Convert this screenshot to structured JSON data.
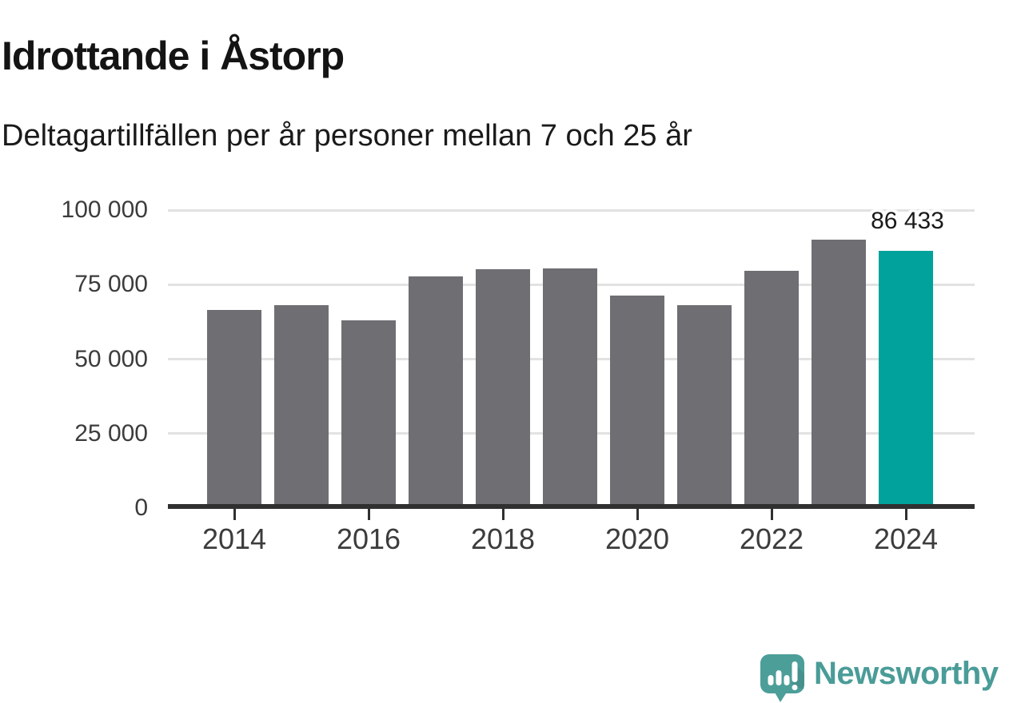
{
  "header": {
    "title": "Idrottande i Åstorp",
    "subtitle": "Deltagartillfällen per år personer mellan 7 och 25 år"
  },
  "chart_data": {
    "type": "bar",
    "title": "Idrottande i Åstorp",
    "subtitle": "Deltagartillfällen per år personer mellan 7 och 25 år",
    "xlabel": "",
    "ylabel": "",
    "categories": [
      "2014",
      "2015",
      "2016",
      "2017",
      "2018",
      "2019",
      "2020",
      "2021",
      "2022",
      "2023",
      "2024"
    ],
    "values": [
      66600,
      68000,
      62900,
      77800,
      80100,
      80500,
      71300,
      68000,
      79600,
      90200,
      86433
    ],
    "highlight_index": 10,
    "highlight_label": "86 433",
    "bar_color": "#6E6E73",
    "highlight_color": "#00A29B",
    "grid": "horizontal",
    "legend": "none",
    "ylim": [
      0,
      100000
    ],
    "yticks": [
      0,
      25000,
      50000,
      75000,
      100000
    ],
    "ytick_labels": [
      "0",
      "25 000",
      "50 000",
      "75 000",
      "100 000"
    ],
    "xtick_labels": [
      "2014",
      "2016",
      "2018",
      "2020",
      "2022",
      "2024"
    ]
  },
  "footer": {
    "brand": "Newsworthy",
    "brand_color": "#4A9C98",
    "logo_bubble_color": "#4C9E99",
    "logo_shade_color": "rgba(0,0,0,0.08)",
    "logo_glyph_color": "#FFFFFF",
    "logo_icon": "bar-chart-exclamation-speech-bubble-icon"
  }
}
